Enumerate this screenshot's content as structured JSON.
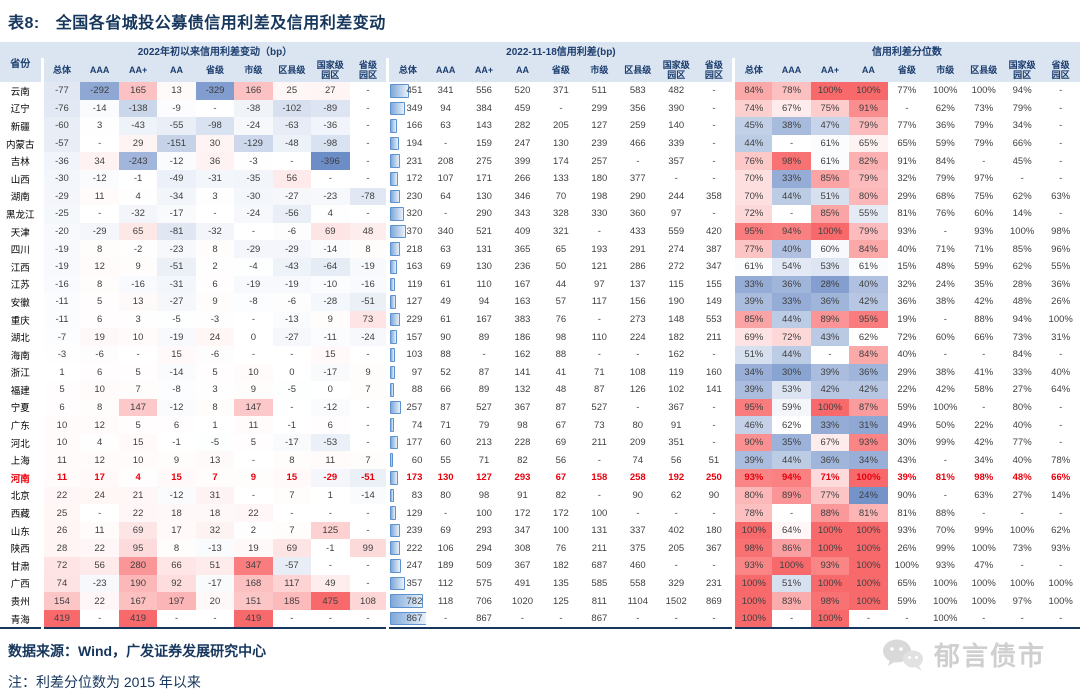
{
  "title": {
    "prefix": "表8:",
    "text": "全国各省城投公募债信用利差及信用利差变动"
  },
  "header": {
    "province": "省份",
    "groups": [
      {
        "label": "2022年初以来信用利差变动（bp）",
        "key": "change"
      },
      {
        "label": "2022-11-18信用利差(bp)",
        "key": "spread"
      },
      {
        "label": "信用利差分位数",
        "key": "pct"
      }
    ],
    "columns": [
      "总体",
      "AAA",
      "AA+",
      "AA",
      "省级",
      "市级",
      "区县级",
      "国家级\n园区",
      "省级\n园区"
    ]
  },
  "colors": {
    "navy": "#16365c",
    "header_bg": "#dbe5f1",
    "highlight_red": "#e8000d",
    "heat_red": [
      248,
      105,
      107
    ],
    "heat_blue": [
      109,
      141,
      198
    ],
    "bar_border": "#5e91cf"
  },
  "scales": {
    "change_red_max": 400,
    "change_blue_max": 380,
    "pct_mid": 62,
    "pct_red_span": 38,
    "pct_blue_span": 40,
    "pct_colored_cols": 4,
    "bar_max": 880
  },
  "highlight": {
    "province": "河南"
  },
  "chart_data": {
    "type": "table",
    "title": "表8: 全国各省城投公募债信用利差及信用利差变动",
    "group_labels": [
      "2022年初以来信用利差变动（bp）",
      "2022-11-18信用利差(bp)",
      "信用利差分位数"
    ],
    "columns": [
      "总体",
      "AAA",
      "AA+",
      "AA",
      "省级",
      "市级",
      "区县级",
      "国家级园区",
      "省级园区"
    ]
  },
  "rows": [
    {
      "province": "云南",
      "change": [
        -77,
        -292,
        165,
        13,
        -329,
        166,
        25,
        27,
        null
      ],
      "spread": [
        451,
        341,
        556,
        520,
        371,
        511,
        583,
        482,
        null
      ],
      "pct": [
        84,
        78,
        100,
        100,
        77,
        100,
        100,
        94,
        null
      ]
    },
    {
      "province": "辽宁",
      "change": [
        -76,
        -14,
        -138,
        -9,
        null,
        -38,
        -102,
        -89,
        null
      ],
      "spread": [
        349,
        94,
        384,
        459,
        null,
        299,
        356,
        390,
        null
      ],
      "pct": [
        74,
        67,
        75,
        91,
        null,
        62,
        73,
        79,
        null
      ]
    },
    {
      "province": "新疆",
      "change": [
        -60,
        3,
        -43,
        -55,
        -98,
        -24,
        -63,
        -36,
        null
      ],
      "spread": [
        166,
        63,
        143,
        282,
        205,
        127,
        259,
        140,
        null
      ],
      "pct": [
        45,
        38,
        47,
        79,
        77,
        36,
        79,
        34,
        null
      ]
    },
    {
      "province": "内蒙古",
      "change": [
        -57,
        null,
        29,
        -151,
        30,
        -129,
        -48,
        -98,
        null
      ],
      "spread": [
        194,
        null,
        159,
        247,
        130,
        239,
        466,
        339,
        null
      ],
      "pct": [
        44,
        null,
        61,
        65,
        65,
        59,
        79,
        66,
        null
      ]
    },
    {
      "province": "吉林",
      "change": [
        -36,
        34,
        -243,
        -12,
        36,
        -3,
        null,
        -396,
        null
      ],
      "spread": [
        231,
        208,
        275,
        399,
        174,
        257,
        null,
        357,
        null
      ],
      "pct": [
        76,
        98,
        61,
        82,
        91,
        84,
        null,
        45,
        null
      ]
    },
    {
      "province": "山西",
      "change": [
        -30,
        -12,
        -1,
        -49,
        -31,
        -35,
        56,
        null,
        null
      ],
      "spread": [
        172,
        107,
        171,
        266,
        133,
        180,
        377,
        null,
        null
      ],
      "pct": [
        70,
        33,
        85,
        79,
        32,
        79,
        97,
        null,
        null
      ]
    },
    {
      "province": "湖南",
      "change": [
        -29,
        11,
        4,
        -34,
        3,
        -30,
        -27,
        -23,
        -78
      ],
      "spread": [
        230,
        64,
        130,
        346,
        70,
        198,
        290,
        244,
        358
      ],
      "pct": [
        70,
        44,
        51,
        80,
        29,
        68,
        75,
        62,
        63
      ]
    },
    {
      "province": "黑龙江",
      "change": [
        -25,
        null,
        -32,
        -17,
        null,
        -24,
        -56,
        4,
        null
      ],
      "spread": [
        320,
        null,
        290,
        343,
        328,
        330,
        360,
        97,
        null
      ],
      "pct": [
        72,
        null,
        85,
        55,
        81,
        76,
        60,
        14,
        null
      ]
    },
    {
      "province": "天津",
      "change": [
        -20,
        -29,
        65,
        -81,
        -32,
        null,
        -6,
        69,
        48
      ],
      "spread": [
        370,
        340,
        521,
        409,
        321,
        null,
        433,
        559,
        420
      ],
      "pct": [
        95,
        94,
        100,
        79,
        93,
        null,
        93,
        100,
        98
      ]
    },
    {
      "province": "四川",
      "change": [
        -19,
        8,
        -2,
        -23,
        8,
        -29,
        -29,
        -14,
        8
      ],
      "spread": [
        218,
        63,
        131,
        365,
        65,
        193,
        291,
        274,
        387
      ],
      "pct": [
        77,
        40,
        60,
        84,
        40,
        71,
        71,
        85,
        96
      ]
    },
    {
      "province": "江西",
      "change": [
        -19,
        12,
        9,
        -51,
        2,
        -4,
        -43,
        -64,
        -19
      ],
      "spread": [
        163,
        69,
        130,
        236,
        50,
        121,
        286,
        272,
        347
      ],
      "pct": [
        61,
        54,
        53,
        61,
        15,
        48,
        59,
        62,
        55
      ]
    },
    {
      "province": "江苏",
      "change": [
        -16,
        8,
        -16,
        -31,
        6,
        -19,
        -19,
        -10,
        -16
      ],
      "spread": [
        119,
        61,
        110,
        167,
        44,
        97,
        137,
        115,
        155
      ],
      "pct": [
        33,
        36,
        28,
        40,
        32,
        24,
        35,
        28,
        36
      ]
    },
    {
      "province": "安徽",
      "change": [
        -11,
        5,
        13,
        -27,
        9,
        -8,
        -6,
        -28,
        -51
      ],
      "spread": [
        127,
        49,
        94,
        163,
        57,
        117,
        156,
        190,
        149
      ],
      "pct": [
        39,
        33,
        36,
        42,
        36,
        38,
        42,
        48,
        26
      ]
    },
    {
      "province": "重庆",
      "change": [
        -11,
        6,
        3,
        -5,
        -3,
        null,
        -13,
        9,
        73
      ],
      "spread": [
        229,
        61,
        167,
        383,
        76,
        null,
        273,
        148,
        553
      ],
      "pct": [
        85,
        44,
        89,
        95,
        19,
        null,
        88,
        94,
        100
      ]
    },
    {
      "province": "湖北",
      "change": [
        -7,
        19,
        10,
        -19,
        24,
        0,
        -27,
        -11,
        -24
      ],
      "spread": [
        157,
        90,
        89,
        186,
        98,
        110,
        224,
        182,
        211
      ],
      "pct": [
        69,
        72,
        43,
        62,
        72,
        60,
        66,
        73,
        31
      ]
    },
    {
      "province": "海南",
      "change": [
        -3,
        -6,
        null,
        15,
        -6,
        null,
        null,
        15,
        null
      ],
      "spread": [
        103,
        88,
        null,
        162,
        88,
        null,
        null,
        162,
        null
      ],
      "pct": [
        51,
        44,
        null,
        84,
        40,
        null,
        null,
        84,
        null
      ]
    },
    {
      "province": "浙江",
      "change": [
        1,
        6,
        5,
        -14,
        5,
        10,
        0,
        -17,
        9
      ],
      "spread": [
        97,
        52,
        87,
        141,
        41,
        71,
        108,
        119,
        160
      ],
      "pct": [
        34,
        30,
        39,
        36,
        29,
        38,
        41,
        33,
        40
      ]
    },
    {
      "province": "福建",
      "change": [
        5,
        10,
        7,
        -8,
        3,
        9,
        -5,
        0,
        7
      ],
      "spread": [
        88,
        66,
        89,
        132,
        48,
        87,
        126,
        102,
        141
      ],
      "pct": [
        39,
        53,
        42,
        42,
        22,
        42,
        58,
        27,
        64
      ]
    },
    {
      "province": "宁夏",
      "change": [
        6,
        8,
        147,
        -12,
        8,
        147,
        null,
        -12,
        null
      ],
      "spread": [
        257,
        87,
        527,
        367,
        87,
        527,
        null,
        367,
        null
      ],
      "pct": [
        95,
        59,
        100,
        87,
        59,
        100,
        null,
        80,
        null
      ]
    },
    {
      "province": "广东",
      "change": [
        10,
        12,
        5,
        6,
        1,
        11,
        -1,
        6,
        null
      ],
      "spread": [
        74,
        71,
        79,
        98,
        67,
        73,
        80,
        91,
        null
      ],
      "pct": [
        46,
        62,
        33,
        31,
        49,
        50,
        22,
        40,
        null
      ]
    },
    {
      "province": "河北",
      "change": [
        10,
        4,
        15,
        -1,
        -5,
        5,
        -17,
        -53,
        null
      ],
      "spread": [
        177,
        60,
        213,
        228,
        69,
        211,
        209,
        351,
        null
      ],
      "pct": [
        90,
        35,
        67,
        93,
        30,
        99,
        42,
        77,
        null
      ]
    },
    {
      "province": "上海",
      "change": [
        11,
        12,
        10,
        9,
        13,
        null,
        8,
        11,
        7
      ],
      "spread": [
        60,
        55,
        71,
        82,
        56,
        null,
        74,
        56,
        51
      ],
      "pct": [
        39,
        44,
        36,
        34,
        43,
        null,
        34,
        40,
        78
      ]
    },
    {
      "province": "河南",
      "change": [
        11,
        17,
        4,
        15,
        7,
        9,
        15,
        -29,
        -51
      ],
      "spread": [
        173,
        130,
        127,
        293,
        67,
        158,
        258,
        192,
        250
      ],
      "pct": [
        93,
        94,
        71,
        100,
        39,
        81,
        98,
        48,
        66
      ]
    },
    {
      "province": "北京",
      "change": [
        22,
        24,
        21,
        -12,
        31,
        null,
        7,
        1,
        -14
      ],
      "spread": [
        83,
        80,
        98,
        91,
        82,
        null,
        90,
        62,
        90
      ],
      "pct": [
        80,
        89,
        77,
        24,
        90,
        null,
        63,
        27,
        14
      ]
    },
    {
      "province": "西藏",
      "change": [
        25,
        null,
        22,
        18,
        18,
        22,
        null,
        null,
        null
      ],
      "spread": [
        129,
        null,
        100,
        172,
        172,
        100,
        null,
        null,
        null
      ],
      "pct": [
        78,
        null,
        88,
        81,
        81,
        88,
        null,
        null,
        null
      ]
    },
    {
      "province": "山东",
      "change": [
        26,
        11,
        69,
        17,
        32,
        2,
        7,
        125,
        null
      ],
      "spread": [
        239,
        69,
        293,
        347,
        100,
        131,
        337,
        402,
        180
      ],
      "pct": [
        100,
        64,
        100,
        100,
        93,
        70,
        99,
        100,
        62
      ]
    },
    {
      "province": "陕西",
      "change": [
        28,
        22,
        95,
        8,
        -13,
        19,
        69,
        -1,
        99
      ],
      "spread": [
        222,
        106,
        294,
        308,
        76,
        211,
        375,
        205,
        367
      ],
      "pct": [
        98,
        86,
        100,
        100,
        26,
        99,
        100,
        73,
        93
      ]
    },
    {
      "province": "甘肃",
      "change": [
        72,
        56,
        280,
        66,
        51,
        347,
        -57,
        null,
        null
      ],
      "spread": [
        247,
        189,
        509,
        367,
        182,
        687,
        460,
        null,
        null
      ],
      "pct": [
        93,
        100,
        93,
        100,
        100,
        93,
        47,
        null,
        null
      ]
    },
    {
      "province": "广西",
      "change": [
        74,
        -23,
        190,
        92,
        -17,
        168,
        117,
        49,
        null
      ],
      "spread": [
        357,
        112,
        575,
        491,
        135,
        585,
        558,
        329,
        231
      ],
      "pct": [
        100,
        51,
        100,
        100,
        65,
        100,
        100,
        100,
        100
      ]
    },
    {
      "province": "贵州",
      "change": [
        154,
        22,
        167,
        197,
        20,
        151,
        185,
        475,
        108
      ],
      "spread": [
        782,
        118,
        706,
        1020,
        125,
        811,
        1104,
        1502,
        869
      ],
      "pct": [
        100,
        83,
        98,
        100,
        59,
        100,
        100,
        97,
        100
      ]
    },
    {
      "province": "青海",
      "change": [
        419,
        null,
        419,
        null,
        null,
        419,
        null,
        null,
        null
      ],
      "spread": [
        867,
        null,
        867,
        null,
        null,
        867,
        null,
        null,
        null
      ],
      "pct": [
        100,
        null,
        100,
        null,
        null,
        100,
        null,
        null,
        null
      ]
    }
  ],
  "footer": {
    "source": "数据来源：Wind，广发证券发展研究中心",
    "note": "注：利差分位数为 2015 年以来"
  },
  "brand": {
    "text": "郁言债市",
    "icon": "wechat-chat-bubbles-icon"
  }
}
